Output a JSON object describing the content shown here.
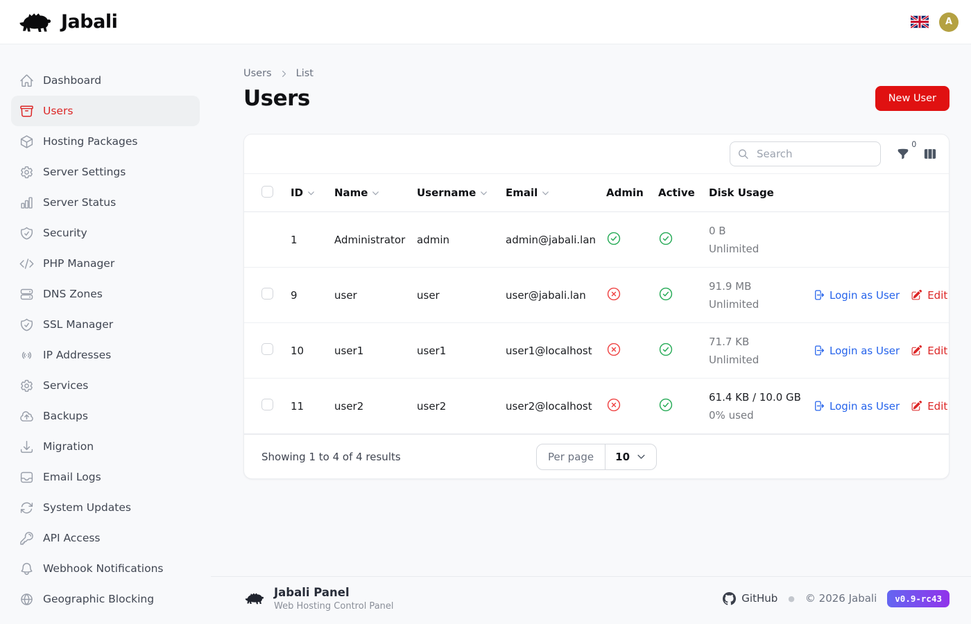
{
  "colors": {
    "accent-red": "#e01111",
    "sidebar-active-red": "#dc2626",
    "link-blue": "#2563eb",
    "action-red": "#dc2626",
    "success-green": "#27ab57",
    "fail-red": "#ef4444",
    "avatar-gold": "#b4a142",
    "badge-from": "#6466f1",
    "badge-to": "#9133ea"
  },
  "header": {
    "brand": "Jabali",
    "avatar_initial": "A",
    "language_flag": "uk-flag"
  },
  "sidebar": {
    "items": [
      {
        "label": "Dashboard",
        "icon": "home",
        "active": false
      },
      {
        "label": "Users",
        "icon": "archive-box",
        "active": true
      },
      {
        "label": "Hosting Packages",
        "icon": "cube",
        "active": false
      },
      {
        "label": "Server Settings",
        "icon": "cog",
        "active": false
      },
      {
        "label": "Server Status",
        "icon": "chart-bar",
        "active": false
      },
      {
        "label": "Security",
        "icon": "shield-check",
        "active": false
      },
      {
        "label": "PHP Manager",
        "icon": "code",
        "active": false
      },
      {
        "label": "DNS Zones",
        "icon": "server-stack",
        "active": false
      },
      {
        "label": "SSL Manager",
        "icon": "shield-check",
        "active": false
      },
      {
        "label": "IP Addresses",
        "icon": "signal",
        "active": false
      },
      {
        "label": "Services",
        "icon": "cog",
        "active": false
      },
      {
        "label": "Backups",
        "icon": "cloud-up",
        "active": false
      },
      {
        "label": "Migration",
        "icon": "download-tray",
        "active": false
      },
      {
        "label": "Email Logs",
        "icon": "inbox",
        "active": false
      },
      {
        "label": "System Updates",
        "icon": "arrow-path",
        "active": false
      },
      {
        "label": "API Access",
        "icon": "key",
        "active": false
      },
      {
        "label": "Webhook Notifications",
        "icon": "bell",
        "active": false
      },
      {
        "label": "Geographic Blocking",
        "icon": "globe",
        "active": false
      }
    ]
  },
  "breadcrumb": {
    "parent": "Users",
    "current": "List"
  },
  "page": {
    "title": "Users",
    "primary_action": "New User"
  },
  "toolbar": {
    "search_placeholder": "Search",
    "filter_count": "0"
  },
  "table": {
    "columns": [
      {
        "label": "ID",
        "sortable": true
      },
      {
        "label": "Name",
        "sortable": true
      },
      {
        "label": "Username",
        "sortable": true
      },
      {
        "label": "Email",
        "sortable": true
      },
      {
        "label": "Admin",
        "sortable": false
      },
      {
        "label": "Active",
        "sortable": false
      },
      {
        "label": "Disk Usage",
        "sortable": false
      }
    ],
    "action_labels": {
      "login": "Login as User",
      "edit": "Edit"
    },
    "rows": [
      {
        "id": "1",
        "name": "Administrator",
        "username": "admin",
        "email": "admin@jabali.lan",
        "admin": true,
        "active": true,
        "disk_line1": "0 B",
        "disk_line2": "Unlimited",
        "disk_emphasis": false,
        "selectable": false,
        "has_actions": false
      },
      {
        "id": "9",
        "name": "user",
        "username": "user",
        "email": "user@jabali.lan",
        "admin": false,
        "active": true,
        "disk_line1": "91.9 MB",
        "disk_line2": "Unlimited",
        "disk_emphasis": false,
        "selectable": true,
        "has_actions": true
      },
      {
        "id": "10",
        "name": "user1",
        "username": "user1",
        "email": "user1@localhost",
        "admin": false,
        "active": true,
        "disk_line1": "71.7 KB",
        "disk_line2": "Unlimited",
        "disk_emphasis": false,
        "selectable": true,
        "has_actions": true
      },
      {
        "id": "11",
        "name": "user2",
        "username": "user2",
        "email": "user2@localhost",
        "admin": false,
        "active": true,
        "disk_line1": "61.4 KB / 10.0 GB",
        "disk_line2": "0% used",
        "disk_emphasis": true,
        "selectable": true,
        "has_actions": true
      }
    ]
  },
  "pagination": {
    "summary": "Showing 1 to 4 of 4 results",
    "per_page_label": "Per page",
    "per_page_value": "10"
  },
  "footer": {
    "brand": "Jabali Panel",
    "tagline": "Web Hosting Control Panel",
    "github_label": "GitHub",
    "copyright": "© 2026 Jabali",
    "version": "v0.9-rc43"
  }
}
